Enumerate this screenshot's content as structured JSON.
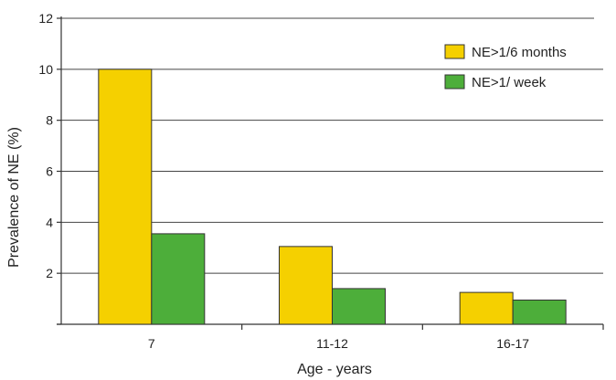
{
  "chart_data": {
    "type": "bar",
    "title": "",
    "xlabel": "Age - years",
    "ylabel": "Prevalence of NE (%)",
    "categories": [
      "7",
      "11-12",
      "16-17"
    ],
    "ylim": [
      0,
      12
    ],
    "yticks": [
      2,
      4,
      6,
      8,
      10,
      12
    ],
    "grid": true,
    "legend_position": "top-right",
    "series": [
      {
        "name": "NE>1/6 months",
        "values": [
          10.0,
          3.05,
          1.25
        ],
        "color": "#F5D000"
      },
      {
        "name": "NE>1/ week",
        "values": [
          3.55,
          1.4,
          0.95
        ],
        "color": "#4DAE3A"
      }
    ]
  }
}
